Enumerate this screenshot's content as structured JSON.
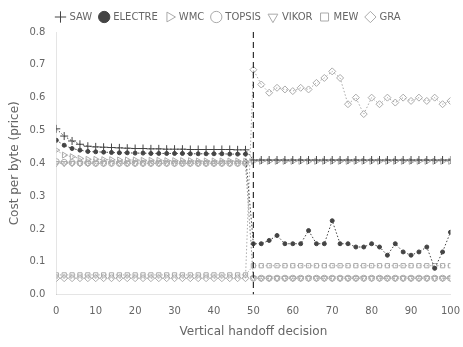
{
  "chart_data": {
    "type": "line",
    "xlabel": "Vertical handoff decision",
    "ylabel": "Cost per byte (price)",
    "xlim": [
      0,
      100
    ],
    "ylim": [
      0,
      0.8
    ],
    "xticks": [
      0,
      10,
      20,
      30,
      40,
      50,
      60,
      70,
      80,
      90,
      100
    ],
    "yticks": [
      {
        "value": 0,
        "label": "0.0"
      },
      0.1,
      0.2,
      0.3,
      0.4,
      0.5,
      0.6,
      0.7,
      0.8
    ],
    "grid": false,
    "legend": "top",
    "x": [
      0,
      2,
      4,
      6,
      8,
      10,
      12,
      14,
      16,
      18,
      20,
      22,
      24,
      26,
      28,
      30,
      32,
      34,
      36,
      38,
      40,
      42,
      44,
      46,
      48,
      50,
      52,
      54,
      56,
      58,
      60,
      62,
      64,
      66,
      68,
      70,
      72,
      74,
      76,
      78,
      80,
      82,
      84,
      86,
      88,
      90,
      92,
      94,
      96,
      98,
      100
    ],
    "series": [
      {
        "name": "SAW",
        "color": "#444444",
        "marker": "plus",
        "line_style": "dotted",
        "values": [
          0.505,
          0.483,
          0.468,
          0.458,
          0.452,
          0.45,
          0.449,
          0.448,
          0.447,
          0.446,
          0.445,
          0.445,
          0.444,
          0.444,
          0.443,
          0.443,
          0.443,
          0.442,
          0.442,
          0.442,
          0.442,
          0.442,
          0.442,
          0.441,
          0.441,
          0.41,
          0.41,
          0.41,
          0.41,
          0.41,
          0.41,
          0.41,
          0.41,
          0.41,
          0.41,
          0.41,
          0.41,
          0.41,
          0.41,
          0.41,
          0.41,
          0.41,
          0.41,
          0.41,
          0.41,
          0.41,
          0.41,
          0.41,
          0.41,
          0.41,
          0.41
        ]
      },
      {
        "name": "ELECTRE",
        "color": "#444444",
        "marker": "dot",
        "line_style": "dotted",
        "values": [
          0.47,
          0.455,
          0.445,
          0.44,
          0.436,
          0.435,
          0.434,
          0.433,
          0.432,
          0.432,
          0.431,
          0.431,
          0.43,
          0.43,
          0.43,
          0.43,
          0.43,
          0.429,
          0.429,
          0.429,
          0.429,
          0.429,
          0.428,
          0.428,
          0.428,
          0.155,
          0.155,
          0.165,
          0.18,
          0.155,
          0.155,
          0.155,
          0.195,
          0.155,
          0.155,
          0.225,
          0.155,
          0.155,
          0.145,
          0.145,
          0.155,
          0.145,
          0.12,
          0.155,
          0.13,
          0.12,
          0.13,
          0.145,
          0.08,
          0.13,
          0.19
        ]
      },
      {
        "name": "WMC",
        "color": "#aaaaaa",
        "marker": "triangle-right",
        "line_style": "dotted",
        "values": [
          0.44,
          0.425,
          0.42,
          0.415,
          0.412,
          0.412,
          0.411,
          0.411,
          0.41,
          0.41,
          0.41,
          0.409,
          0.409,
          0.409,
          0.408,
          0.408,
          0.408,
          0.408,
          0.407,
          0.407,
          0.407,
          0.407,
          0.407,
          0.407,
          0.406,
          0.406,
          0.406,
          0.406,
          0.406,
          0.406,
          0.406,
          0.406,
          0.406,
          0.406,
          0.406,
          0.406,
          0.406,
          0.406,
          0.406,
          0.406,
          0.406,
          0.406,
          0.406,
          0.406,
          0.406,
          0.406,
          0.406,
          0.406,
          0.406,
          0.406,
          0.406
        ]
      },
      {
        "name": "TOPSIS",
        "color": "#aaaaaa",
        "marker": "circle",
        "line_style": "dotted",
        "values": [
          0.405,
          0.403,
          0.402,
          0.401,
          0.401,
          0.4,
          0.4,
          0.4,
          0.4,
          0.4,
          0.4,
          0.4,
          0.4,
          0.4,
          0.4,
          0.4,
          0.4,
          0.4,
          0.4,
          0.4,
          0.4,
          0.4,
          0.4,
          0.4,
          0.4,
          0.05,
          0.05,
          0.05,
          0.05,
          0.05,
          0.05,
          0.05,
          0.05,
          0.05,
          0.05,
          0.05,
          0.05,
          0.05,
          0.05,
          0.05,
          0.05,
          0.05,
          0.05,
          0.05,
          0.05,
          0.05,
          0.05,
          0.05,
          0.05,
          0.05,
          0.05
        ]
      },
      {
        "name": "VIKOR",
        "color": "#aaaaaa",
        "marker": "triangle-down",
        "line_style": "dotted",
        "values": [
          0.4,
          0.4,
          0.4,
          0.4,
          0.4,
          0.4,
          0.4,
          0.4,
          0.4,
          0.4,
          0.4,
          0.4,
          0.4,
          0.4,
          0.4,
          0.4,
          0.4,
          0.4,
          0.4,
          0.4,
          0.4,
          0.4,
          0.4,
          0.4,
          0.4,
          0.05,
          0.05,
          0.05,
          0.05,
          0.05,
          0.05,
          0.05,
          0.05,
          0.05,
          0.05,
          0.05,
          0.05,
          0.05,
          0.05,
          0.05,
          0.05,
          0.05,
          0.05,
          0.05,
          0.05,
          0.05,
          0.05,
          0.05,
          0.05,
          0.05,
          0.05
        ]
      },
      {
        "name": "MEW",
        "color": "#aaaaaa",
        "marker": "square",
        "line_style": "dotted",
        "values": [
          0.06,
          0.06,
          0.06,
          0.06,
          0.06,
          0.06,
          0.06,
          0.06,
          0.06,
          0.06,
          0.06,
          0.06,
          0.06,
          0.06,
          0.06,
          0.06,
          0.06,
          0.06,
          0.06,
          0.06,
          0.06,
          0.06,
          0.06,
          0.06,
          0.06,
          0.088,
          0.088,
          0.088,
          0.088,
          0.088,
          0.088,
          0.088,
          0.088,
          0.088,
          0.088,
          0.088,
          0.088,
          0.088,
          0.088,
          0.088,
          0.088,
          0.088,
          0.088,
          0.088,
          0.088,
          0.088,
          0.088,
          0.088,
          0.088,
          0.088,
          0.088
        ]
      },
      {
        "name": "GRA",
        "color": "#aaaaaa",
        "marker": "diamond",
        "line_style": "dotted",
        "values": [
          0.05,
          0.05,
          0.05,
          0.05,
          0.05,
          0.05,
          0.05,
          0.05,
          0.05,
          0.05,
          0.05,
          0.05,
          0.05,
          0.05,
          0.05,
          0.05,
          0.05,
          0.05,
          0.05,
          0.05,
          0.05,
          0.05,
          0.05,
          0.05,
          0.05,
          0.685,
          0.64,
          0.615,
          0.63,
          0.625,
          0.62,
          0.63,
          0.625,
          0.645,
          0.66,
          0.68,
          0.66,
          0.58,
          0.6,
          0.55,
          0.6,
          0.58,
          0.6,
          0.585,
          0.6,
          0.59,
          0.6,
          0.59,
          0.6,
          0.58,
          0.59
        ]
      }
    ],
    "vline": {
      "x": 50,
      "color": "#333333",
      "line_style": "dashed"
    }
  }
}
